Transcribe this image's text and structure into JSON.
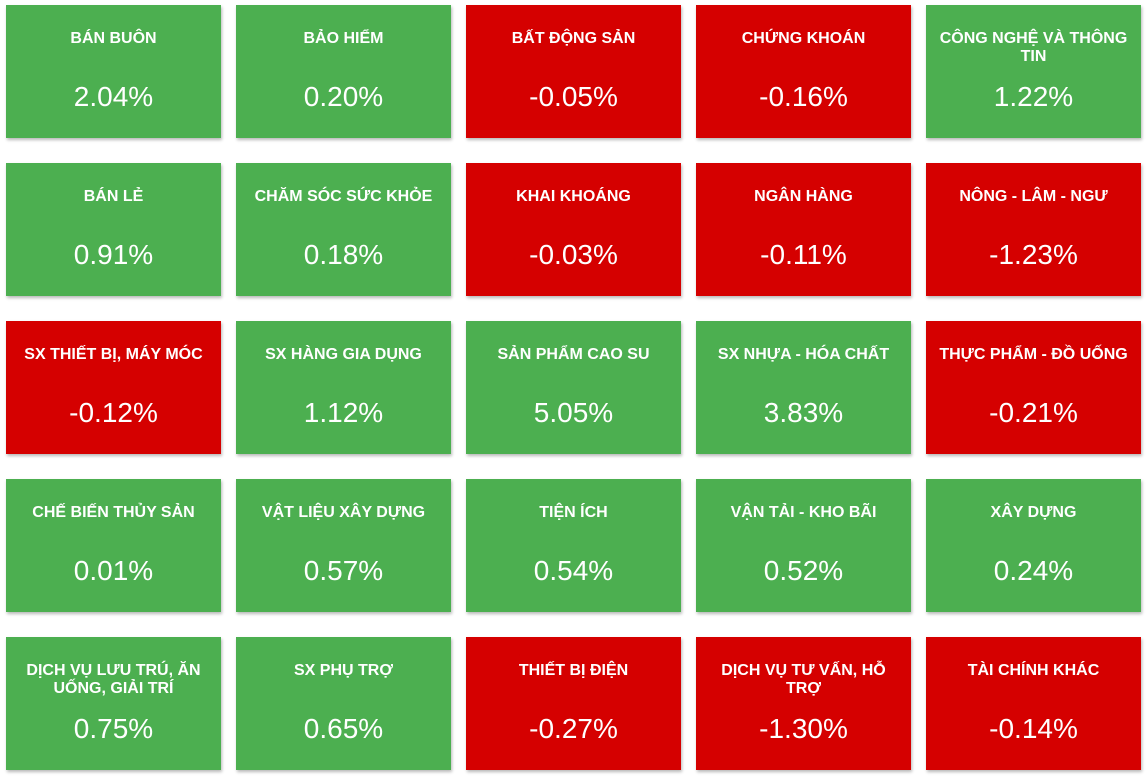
{
  "colors": {
    "positive": "#4caf50",
    "negative": "#d50000"
  },
  "tiles": [
    {
      "name": "BÁN BUÔN",
      "value": "2.04%",
      "trend": "positive"
    },
    {
      "name": "BẢO HIỂM",
      "value": "0.20%",
      "trend": "positive"
    },
    {
      "name": "BẤT ĐỘNG SẢN",
      "value": "-0.05%",
      "trend": "negative"
    },
    {
      "name": "CHỨNG KHOÁN",
      "value": "-0.16%",
      "trend": "negative"
    },
    {
      "name": "CÔNG NGHỆ VÀ THÔNG TIN",
      "value": "1.22%",
      "trend": "positive"
    },
    {
      "name": "BÁN LẺ",
      "value": "0.91%",
      "trend": "positive"
    },
    {
      "name": "CHĂM SÓC SỨC KHỎE",
      "value": "0.18%",
      "trend": "positive"
    },
    {
      "name": "KHAI KHOÁNG",
      "value": "-0.03%",
      "trend": "negative"
    },
    {
      "name": "NGÂN HÀNG",
      "value": "-0.11%",
      "trend": "negative"
    },
    {
      "name": "NÔNG - LÂM - NGƯ",
      "value": "-1.23%",
      "trend": "negative"
    },
    {
      "name": "SX THIẾT BỊ, MÁY MÓC",
      "value": "-0.12%",
      "trend": "negative"
    },
    {
      "name": "SX HÀNG GIA DỤNG",
      "value": "1.12%",
      "trend": "positive"
    },
    {
      "name": "SẢN PHẨM CAO SU",
      "value": "5.05%",
      "trend": "positive"
    },
    {
      "name": "SX NHỰA - HÓA CHẤT",
      "value": "3.83%",
      "trend": "positive"
    },
    {
      "name": "THỰC PHẨM - ĐỒ UỐNG",
      "value": "-0.21%",
      "trend": "negative"
    },
    {
      "name": "CHẾ BIẾN THỦY SẢN",
      "value": "0.01%",
      "trend": "positive"
    },
    {
      "name": "VẬT LIỆU XÂY DỰNG",
      "value": "0.57%",
      "trend": "positive"
    },
    {
      "name": "TIỆN ÍCH",
      "value": "0.54%",
      "trend": "positive"
    },
    {
      "name": "VẬN TẢI - KHO BÃI",
      "value": "0.52%",
      "trend": "positive"
    },
    {
      "name": "XÂY DỰNG",
      "value": "0.24%",
      "trend": "positive"
    },
    {
      "name": "DỊCH VỤ LƯU TRÚ, ĂN UỐNG, GIẢI TRÍ",
      "value": "0.75%",
      "trend": "positive"
    },
    {
      "name": "SX PHỤ TRỢ",
      "value": "0.65%",
      "trend": "positive"
    },
    {
      "name": "THIẾT BỊ ĐIỆN",
      "value": "-0.27%",
      "trend": "negative"
    },
    {
      "name": "DỊCH VỤ TƯ VẤN, HỖ TRỢ",
      "value": "-1.30%",
      "trend": "negative"
    },
    {
      "name": "TÀI CHÍNH KHÁC",
      "value": "-0.14%",
      "trend": "negative"
    }
  ]
}
